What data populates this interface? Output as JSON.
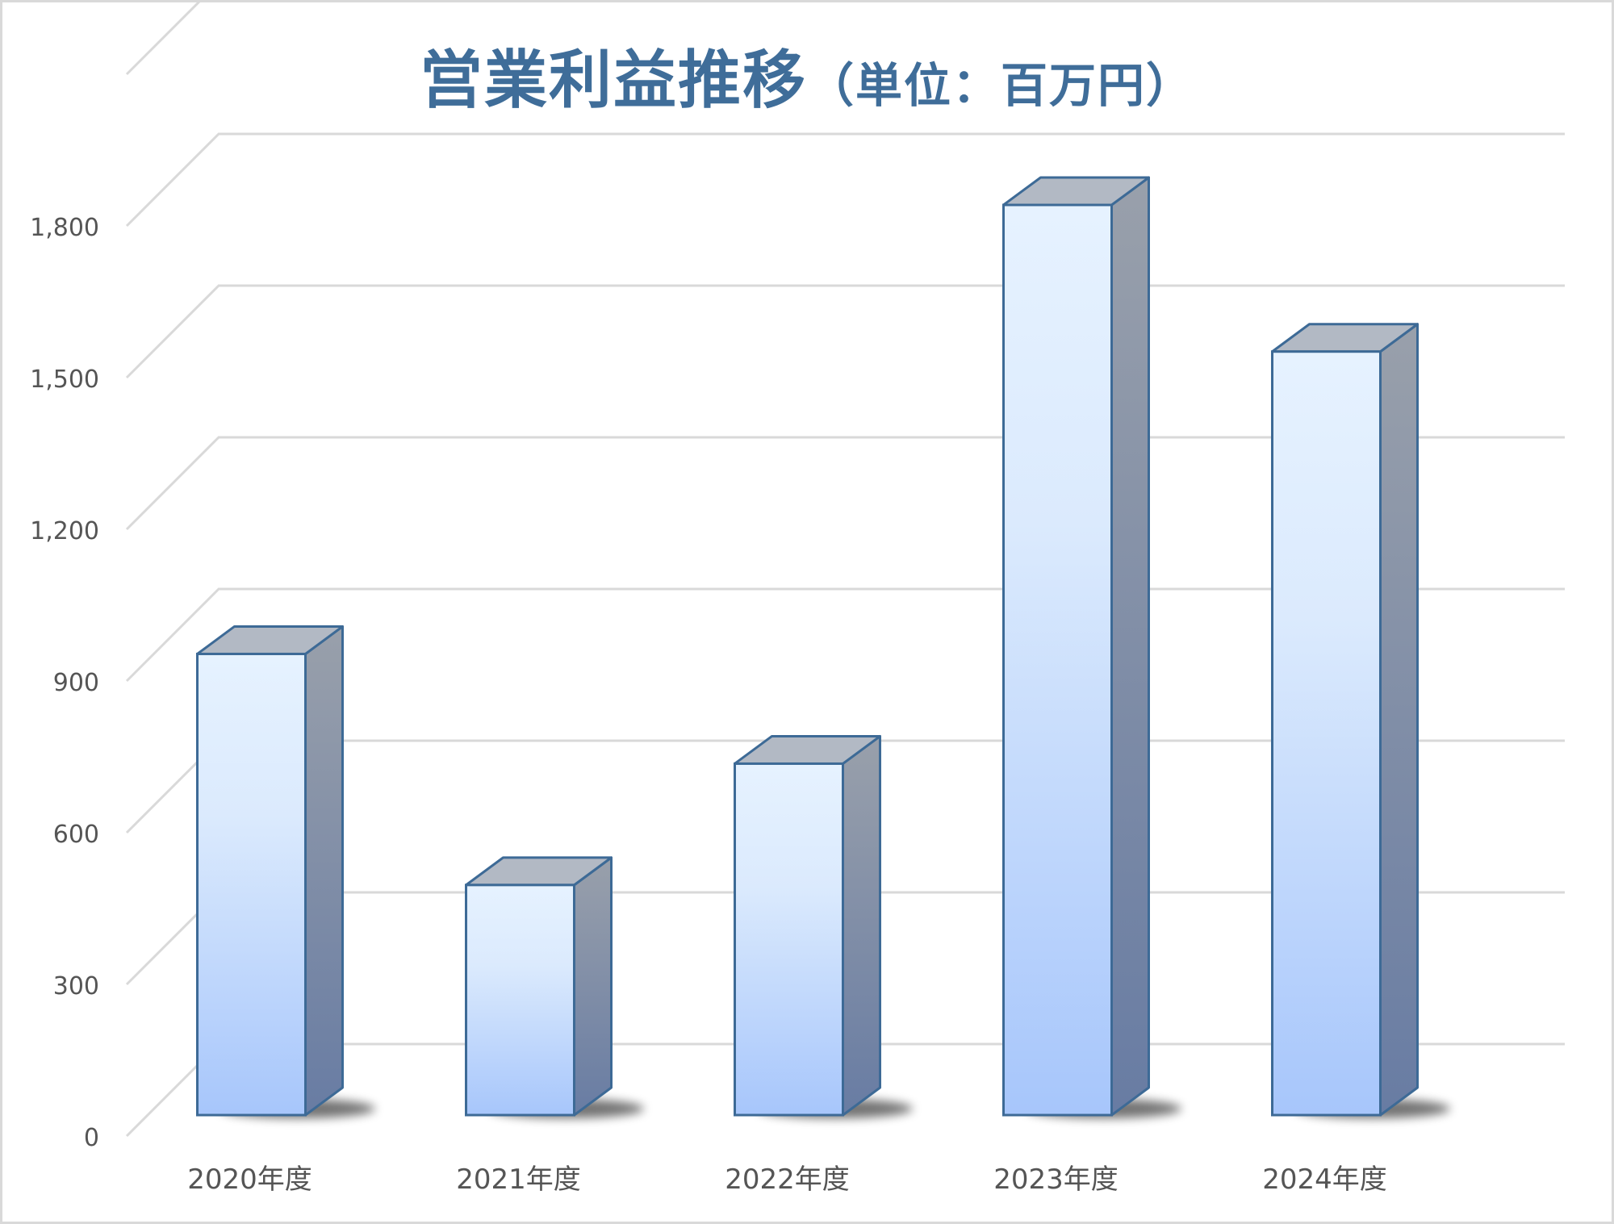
{
  "chart_data": {
    "type": "bar",
    "title": "営業利益推移",
    "title_unit": "（単位：百万円）",
    "categories": [
      "2020年度",
      "2021年度",
      "2022年度",
      "2023年度",
      "2024年度"
    ],
    "series": [
      {
        "values": [
          912,
          455,
          695,
          1800,
          1510
        ]
      }
    ],
    "y_ticks": [
      "0",
      "300",
      "600",
      "900",
      "1,200",
      "1,500",
      "1,800"
    ],
    "ylim": [
      0,
      2100
    ],
    "grid": true,
    "legend": "none",
    "colors": {
      "title": "#3f6d99",
      "bar_front_top": "#e6f2ff",
      "bar_front_bottom": "#a7c6fb",
      "bar_side_top": "#99a0ab",
      "bar_side_bottom": "#687ca3",
      "bar_top": "#b2b9c4",
      "bar_stroke": "#3d6a96",
      "gridline": "#d9d9d9",
      "tick_text": "#555555"
    }
  }
}
